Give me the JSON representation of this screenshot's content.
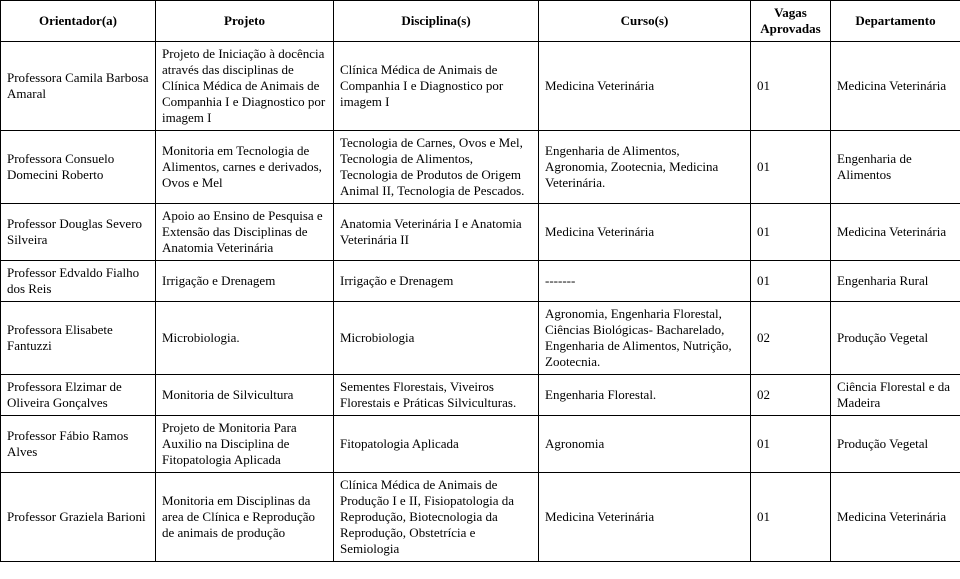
{
  "table": {
    "headers": [
      "Orientador(a)",
      "Projeto",
      "Disciplina(s)",
      "Curso(s)",
      "Vagas Aprovadas",
      "Departamento"
    ],
    "rows": [
      {
        "orientador": "Professora Camila Barbosa Amaral",
        "projeto": "Projeto de Iniciação à docência através das disciplinas de Clínica Médica de Animais de Companhia I e Diagnostico por imagem I",
        "disciplinas": "Clínica Médica de Animais de Companhia I e Diagnostico por imagem I",
        "cursos": "Medicina Veterinária",
        "vagas": "01",
        "departamento": "Medicina Veterinária"
      },
      {
        "orientador": "Professora Consuelo Domecini Roberto",
        "projeto": "Monitoria em Tecnologia de Alimentos, carnes e derivados, Ovos e Mel",
        "disciplinas": "Tecnologia de Carnes, Ovos e Mel, Tecnologia de Alimentos, Tecnologia de Produtos de Origem Animal II, Tecnologia de Pescados.",
        "cursos": "Engenharia de Alimentos, Agronomia, Zootecnia, Medicina Veterinária.",
        "vagas": "01",
        "departamento": "Engenharia de Alimentos"
      },
      {
        "orientador": "Professor Douglas Severo Silveira",
        "projeto": "Apoio ao Ensino de Pesquisa e Extensão das Disciplinas de Anatomia Veterinária",
        "disciplinas": "Anatomia Veterinária I e Anatomia Veterinária II",
        "cursos": "Medicina Veterinária",
        "vagas": "01",
        "departamento": "Medicina Veterinária"
      },
      {
        "orientador": "Professor Edvaldo Fialho dos Reis",
        "projeto": "Irrigação e Drenagem",
        "disciplinas": "Irrigação e Drenagem",
        "cursos": "-------",
        "vagas": "01",
        "departamento": "Engenharia Rural"
      },
      {
        "orientador": "Professora Elisabete Fantuzzi",
        "projeto": "Microbiologia.",
        "disciplinas": "Microbiologia",
        "cursos": "Agronomia, Engenharia Florestal, Ciências Biológicas- Bacharelado, Engenharia de Alimentos, Nutrição, Zootecnia.",
        "vagas": "02",
        "departamento": "Produção Vegetal"
      },
      {
        "orientador": "Professora Elzimar de Oliveira Gonçalves",
        "projeto": "Monitoria de Silvicultura",
        "disciplinas": "Sementes Florestais, Viveiros Florestais e Práticas Silviculturas.",
        "cursos": "Engenharia Florestal.",
        "vagas": "02",
        "departamento": "Ciência Florestal e da Madeira"
      },
      {
        "orientador": "Professor Fábio Ramos Alves",
        "projeto": "Projeto de Monitoria Para Auxilio na Disciplina de Fitopatologia Aplicada",
        "disciplinas": "Fitopatologia Aplicada",
        "cursos": "Agronomia",
        "vagas": "01",
        "departamento": "Produção Vegetal"
      },
      {
        "orientador": "Professor Graziela Barioni",
        "projeto": "Monitoria em Disciplinas da area de Clínica e Reprodução de animais de produção",
        "disciplinas": "Clínica Médica de Animais de Produção I e II, Fisiopatologia da Reprodução, Biotecnologia da Reprodução, Obstetrícia e Semiologia",
        "cursos": "Medicina Veterinária",
        "vagas": "01",
        "departamento": "Medicina Veterinária"
      }
    ]
  }
}
